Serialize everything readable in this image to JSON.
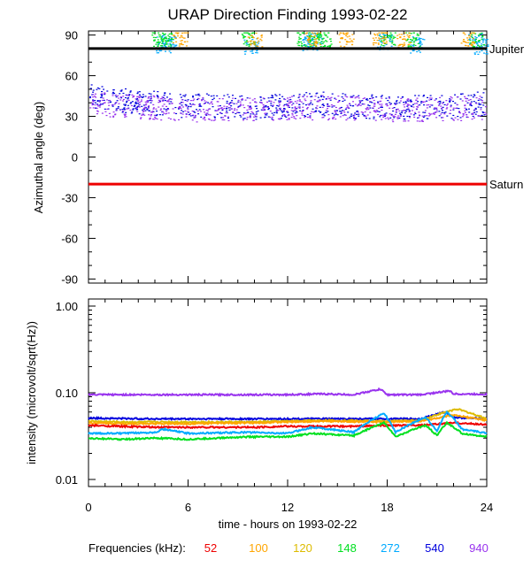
{
  "title": "URAP Direction Finding  1993-02-22",
  "xlabel": "time - hours on 1993-02-22",
  "legend": {
    "label": "Frequencies (kHz):",
    "entries": [
      {
        "name": "52",
        "color": "#ee0000"
      },
      {
        "name": "100",
        "color": "#ffa500"
      },
      {
        "name": "120",
        "color": "#ddbb00"
      },
      {
        "name": "148",
        "color": "#00e020"
      },
      {
        "name": "272",
        "color": "#00aaff"
      },
      {
        "name": "540",
        "color": "#0000dd"
      },
      {
        "name": "940",
        "color": "#9933ee"
      }
    ]
  },
  "chart_data": [
    {
      "type": "scatter",
      "ylabel": "Azimuthal angle (deg)",
      "xlim": [
        0,
        24
      ],
      "ylim": [
        -93,
        93
      ],
      "xticks": [
        "0",
        "6",
        "12",
        "18",
        "24"
      ],
      "yticks": [
        "90",
        "60",
        "30",
        "0",
        "-30",
        "-60",
        "-90"
      ],
      "reference_lines": [
        {
          "name": "Jupiter",
          "y": 80,
          "color": "#000000"
        },
        {
          "name": "Saturn",
          "y": -20,
          "color": "#ee0000"
        }
      ],
      "series": [
        {
          "name": "540",
          "description": "dense band around 40 deg spanning 0-24 h",
          "x": [
            0.5,
            2,
            4,
            6,
            8,
            10,
            12,
            14,
            16,
            18,
            20,
            22,
            23.8
          ],
          "y": [
            45,
            42,
            40,
            38,
            38,
            37,
            38,
            40,
            38,
            37,
            37,
            38,
            40
          ]
        },
        {
          "name": "940",
          "description": "dense band around 37 deg spanning 0-24 h",
          "x": [
            0.5,
            2,
            4,
            6,
            8,
            10,
            12,
            14,
            16,
            18,
            20,
            22,
            23.8
          ],
          "y": [
            40,
            38,
            37,
            35,
            36,
            35,
            36,
            37,
            36,
            35,
            35,
            36,
            37
          ]
        },
        {
          "name": "272",
          "description": "clusters near 80-90 deg",
          "x": [
            4.5,
            4.8,
            9.8,
            13.3,
            13.6,
            17.8,
            19.8,
            23.3,
            23.6
          ],
          "y": [
            83,
            85,
            82,
            84,
            87,
            85,
            83,
            86,
            82
          ]
        },
        {
          "name": "148",
          "description": "clusters near 85-90 deg",
          "x": [
            4.2,
            4.6,
            9.6,
            13.0,
            13.7,
            14.2,
            18.0,
            19.5,
            23.4
          ],
          "y": [
            87,
            86,
            88,
            88,
            86,
            87,
            88,
            87,
            86
          ]
        },
        {
          "name": "100",
          "description": "scattered near 85-90 deg",
          "x": [
            5.5,
            10.0,
            13.5,
            15.5,
            17.5,
            19.0,
            22.8
          ],
          "y": [
            88,
            86,
            88,
            87,
            89,
            86,
            88
          ]
        }
      ]
    },
    {
      "type": "line",
      "ylabel": "intensity (microvolt/sqrt(Hz))",
      "xlabel": "time - hours on 1993-02-22",
      "xlim": [
        0,
        24
      ],
      "ylim": [
        0.01,
        1.0
      ],
      "yscale": "log",
      "xticks": [
        "0",
        "6",
        "12",
        "18",
        "24"
      ],
      "yticks": [
        "1.00",
        "0.10",
        "0.01"
      ],
      "series": [
        {
          "name": "940",
          "x": [
            0,
            4,
            8,
            12,
            14,
            16,
            17.6,
            18,
            20,
            21.8,
            22,
            24
          ],
          "y": [
            0.095,
            0.095,
            0.095,
            0.095,
            0.097,
            0.095,
            0.11,
            0.095,
            0.095,
            0.105,
            0.097,
            0.096
          ]
        },
        {
          "name": "540",
          "x": [
            0,
            4,
            8,
            12,
            16,
            20,
            21.5,
            22,
            24
          ],
          "y": [
            0.051,
            0.05,
            0.05,
            0.05,
            0.05,
            0.05,
            0.06,
            0.052,
            0.05
          ]
        },
        {
          "name": "120",
          "x": [
            0,
            2,
            6,
            10,
            12,
            14,
            18,
            20,
            22.2,
            24
          ],
          "y": [
            0.047,
            0.046,
            0.046,
            0.046,
            0.047,
            0.048,
            0.047,
            0.048,
            0.065,
            0.05
          ]
        },
        {
          "name": "100",
          "x": [
            0,
            2,
            6,
            10,
            12,
            14,
            18,
            20,
            22,
            24
          ],
          "y": [
            0.045,
            0.044,
            0.044,
            0.045,
            0.046,
            0.047,
            0.046,
            0.047,
            0.055,
            0.048
          ]
        },
        {
          "name": "52",
          "x": [
            0,
            2,
            4,
            6,
            10,
            12,
            16,
            18,
            20,
            22,
            24
          ],
          "y": [
            0.042,
            0.041,
            0.04,
            0.04,
            0.04,
            0.041,
            0.041,
            0.042,
            0.042,
            0.045,
            0.043
          ]
        },
        {
          "name": "272",
          "x": [
            0,
            2,
            4,
            4.5,
            6,
            9.5,
            12,
            13.5,
            16,
            17.8,
            18.5,
            20.3,
            21,
            21.6,
            22.5,
            24
          ],
          "y": [
            0.034,
            0.034,
            0.035,
            0.038,
            0.034,
            0.035,
            0.034,
            0.04,
            0.035,
            0.058,
            0.035,
            0.052,
            0.036,
            0.06,
            0.038,
            0.034
          ]
        },
        {
          "name": "148",
          "x": [
            0,
            2,
            4,
            6,
            9.5,
            12,
            13.5,
            16,
            17.8,
            18.5,
            20.3,
            21,
            21.6,
            22.5,
            24
          ],
          "y": [
            0.03,
            0.029,
            0.03,
            0.029,
            0.031,
            0.031,
            0.034,
            0.032,
            0.045,
            0.031,
            0.042,
            0.032,
            0.045,
            0.034,
            0.031
          ]
        }
      ]
    }
  ]
}
